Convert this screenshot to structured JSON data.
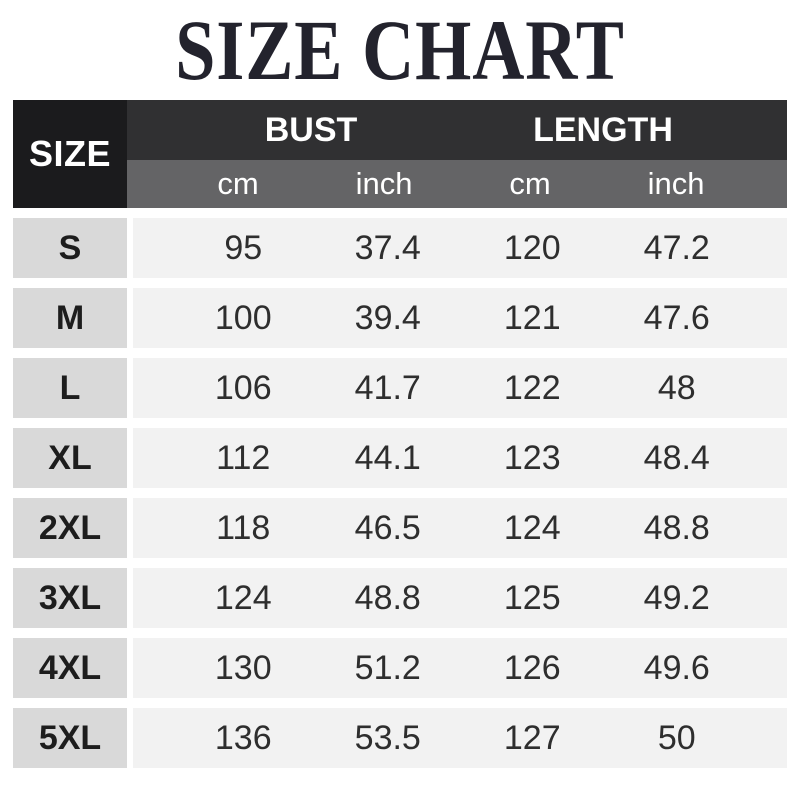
{
  "title": "SIZE CHART",
  "colors": {
    "title_text": "#23232d",
    "corner_bg": "#1b1b1d",
    "group_header_bg": "#303032",
    "unit_header_bg": "#646466",
    "header_text": "#ffffff",
    "size_cell_bg": "#d9d9d9",
    "value_strip_bg": "#f2f2f2",
    "value_text": "#2e2e2e",
    "page_bg": "#ffffff"
  },
  "table": {
    "corner_label": "SIZE",
    "group_headers": [
      "BUST",
      "LENGTH"
    ],
    "unit_headers": [
      "cm",
      "inch",
      "cm",
      "inch"
    ],
    "rows": [
      {
        "size": "S",
        "bust_cm": "95",
        "bust_inch": "37.4",
        "length_cm": "120",
        "length_inch": "47.2"
      },
      {
        "size": "M",
        "bust_cm": "100",
        "bust_inch": "39.4",
        "length_cm": "121",
        "length_inch": "47.6"
      },
      {
        "size": "L",
        "bust_cm": "106",
        "bust_inch": "41.7",
        "length_cm": "122",
        "length_inch": "48"
      },
      {
        "size": "XL",
        "bust_cm": "112",
        "bust_inch": "44.1",
        "length_cm": "123",
        "length_inch": "48.4"
      },
      {
        "size": "2XL",
        "bust_cm": "118",
        "bust_inch": "46.5",
        "length_cm": "124",
        "length_inch": "48.8"
      },
      {
        "size": "3XL",
        "bust_cm": "124",
        "bust_inch": "48.8",
        "length_cm": "125",
        "length_inch": "49.2"
      },
      {
        "size": "4XL",
        "bust_cm": "130",
        "bust_inch": "51.2",
        "length_cm": "126",
        "length_inch": "49.6"
      },
      {
        "size": "5XL",
        "bust_cm": "136",
        "bust_inch": "53.5",
        "length_cm": "127",
        "length_inch": "50"
      }
    ]
  },
  "chart_data": {
    "type": "table",
    "title": "SIZE CHART",
    "columns": [
      "SIZE",
      "BUST cm",
      "BUST inch",
      "LENGTH cm",
      "LENGTH inch"
    ],
    "rows": [
      [
        "S",
        95,
        37.4,
        120,
        47.2
      ],
      [
        "M",
        100,
        39.4,
        121,
        47.6
      ],
      [
        "L",
        106,
        41.7,
        122,
        48
      ],
      [
        "XL",
        112,
        44.1,
        123,
        48.4
      ],
      [
        "2XL",
        118,
        46.5,
        124,
        48.8
      ],
      [
        "3XL",
        124,
        48.8,
        125,
        49.2
      ],
      [
        "4XL",
        130,
        51.2,
        126,
        49.6
      ],
      [
        "5XL",
        136,
        53.5,
        127,
        50
      ]
    ]
  }
}
